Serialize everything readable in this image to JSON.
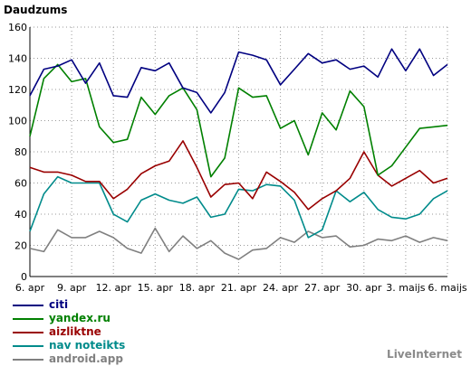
{
  "chart_data": {
    "type": "line",
    "title": "Daudzums",
    "ylim": [
      0,
      160
    ],
    "yticks": [
      0,
      20,
      40,
      60,
      80,
      100,
      120,
      140,
      160
    ],
    "grid": true,
    "xtick_labels": [
      "6. apr",
      "9. apr",
      "12. apr",
      "15. apr",
      "18. apr",
      "21. apr",
      "24. apr",
      "27. apr",
      "30. apr",
      "3. maijs",
      "6. maijs"
    ],
    "series": [
      {
        "name": "citi",
        "color": "#000080",
        "values": [
          116,
          133,
          135,
          139,
          124,
          137,
          116,
          115,
          134,
          132,
          137,
          121,
          118,
          105,
          118,
          144,
          142,
          139,
          123,
          133,
          143,
          137,
          139,
          133,
          135,
          128,
          146,
          132,
          146,
          129,
          136
        ]
      },
      {
        "name": "yandex.ru",
        "color": "#008000",
        "values": [
          90,
          127,
          136,
          125,
          127,
          96,
          86,
          88,
          115,
          104,
          116,
          121,
          107,
          64,
          76,
          121,
          115,
          116,
          95,
          100,
          78,
          105,
          94,
          119,
          109,
          65,
          71,
          83,
          95,
          96,
          97
        ]
      },
      {
        "name": "aizliktne",
        "color": "#990000",
        "values": [
          70,
          67,
          67,
          65,
          61,
          61,
          50,
          56,
          66,
          71,
          74,
          87,
          70,
          51,
          59,
          60,
          50,
          67,
          61,
          54,
          43,
          50,
          55,
          63,
          80,
          65,
          58,
          63,
          68,
          60,
          63
        ]
      },
      {
        "name": "nav noteikts",
        "color": "#008b8b",
        "values": [
          29,
          53,
          64,
          60,
          60,
          60,
          40,
          35,
          49,
          53,
          49,
          47,
          51,
          38,
          40,
          56,
          55,
          59,
          58,
          49,
          25,
          30,
          55,
          48,
          54,
          43,
          38,
          37,
          40,
          50,
          55
        ]
      },
      {
        "name": "android.app",
        "color": "#808080",
        "values": [
          18,
          16,
          30,
          25,
          25,
          29,
          25,
          18,
          15,
          31,
          16,
          26,
          18,
          23,
          15,
          11,
          17,
          18,
          25,
          22,
          29,
          25,
          26,
          19,
          20,
          24,
          23,
          26,
          22,
          25,
          23
        ]
      }
    ]
  },
  "legend": [
    {
      "label": "citi",
      "color": "#000080"
    },
    {
      "label": "yandex.ru",
      "color": "#008000"
    },
    {
      "label": "aizliktne",
      "color": "#990000"
    },
    {
      "label": "nav noteikts",
      "color": "#008b8b"
    },
    {
      "label": "android.app",
      "color": "#808080"
    }
  ],
  "brand": "LiveInternet"
}
